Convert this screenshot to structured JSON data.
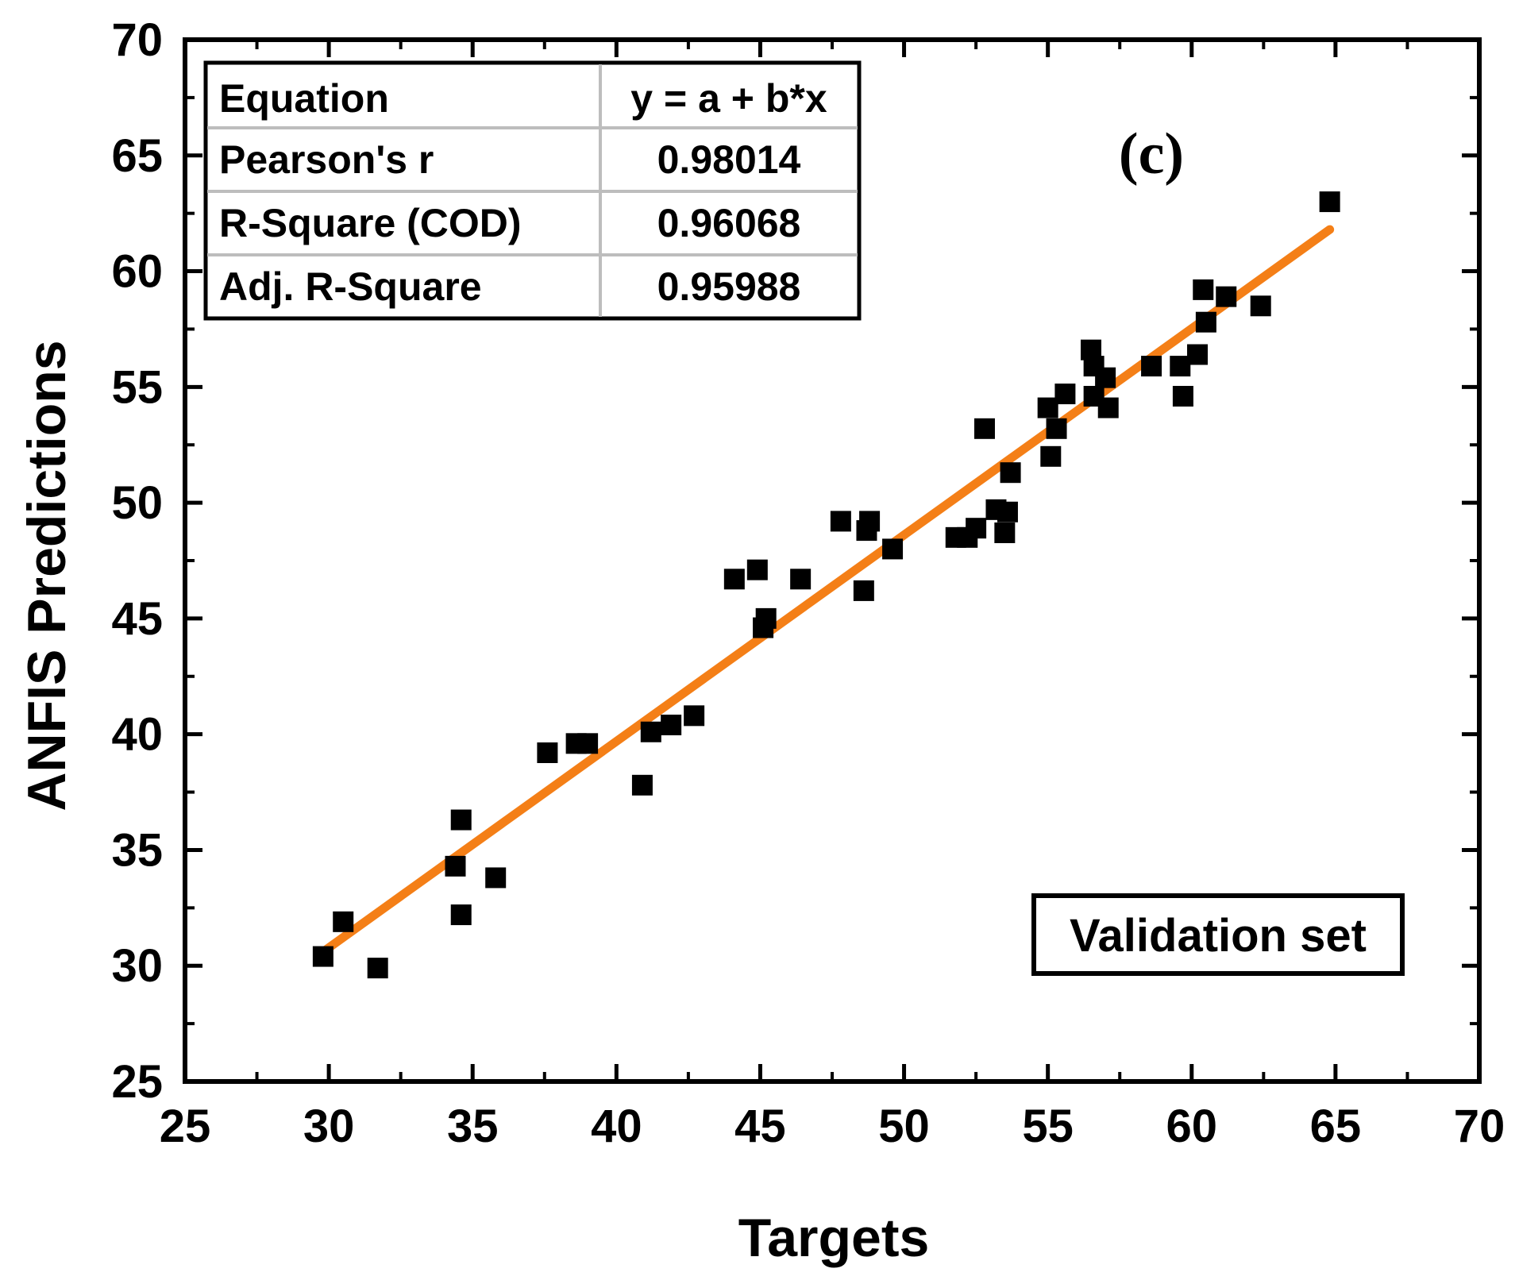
{
  "chart_data": {
    "type": "scatter",
    "title": "",
    "panel_label": "(c)",
    "xlabel": "Targets",
    "ylabel": "ANFIS Predictions",
    "xlim": [
      25,
      70
    ],
    "ylim": [
      25,
      70
    ],
    "xticks": [
      25,
      30,
      35,
      40,
      45,
      50,
      55,
      60,
      65,
      70
    ],
    "yticks": [
      25,
      30,
      35,
      40,
      45,
      50,
      55,
      60,
      65,
      70
    ],
    "legend_box_text": "Validation set",
    "marker": "square",
    "marker_color": "#000000",
    "fit_color": "#f47f17",
    "fit_line": {
      "x0": 29.8,
      "x1": 64.8,
      "y0": 30.6,
      "y1": 61.8
    },
    "stats_table": [
      {
        "label": "Equation",
        "value": "y = a + b*x"
      },
      {
        "label": "Pearson's r",
        "value": "0.98014"
      },
      {
        "label": "R-Square (COD)",
        "value": "0.96068"
      },
      {
        "label": "Adj. R-Square",
        "value": "0.95988"
      }
    ],
    "points": [
      {
        "x": 29.8,
        "y": 30.4
      },
      {
        "x": 30.5,
        "y": 31.9
      },
      {
        "x": 31.7,
        "y": 29.9
      },
      {
        "x": 34.4,
        "y": 34.3
      },
      {
        "x": 34.6,
        "y": 36.3
      },
      {
        "x": 34.6,
        "y": 32.2
      },
      {
        "x": 35.8,
        "y": 33.8
      },
      {
        "x": 37.6,
        "y": 39.2
      },
      {
        "x": 38.6,
        "y": 39.6
      },
      {
        "x": 39.0,
        "y": 39.6
      },
      {
        "x": 40.9,
        "y": 37.8
      },
      {
        "x": 41.2,
        "y": 40.1
      },
      {
        "x": 41.9,
        "y": 40.4
      },
      {
        "x": 42.7,
        "y": 40.8
      },
      {
        "x": 44.1,
        "y": 46.7
      },
      {
        "x": 44.9,
        "y": 47.1
      },
      {
        "x": 45.1,
        "y": 44.6
      },
      {
        "x": 45.2,
        "y": 45.0
      },
      {
        "x": 46.4,
        "y": 46.7
      },
      {
        "x": 47.8,
        "y": 49.2
      },
      {
        "x": 48.6,
        "y": 46.2
      },
      {
        "x": 48.7,
        "y": 48.8
      },
      {
        "x": 48.8,
        "y": 49.2
      },
      {
        "x": 49.6,
        "y": 48.0
      },
      {
        "x": 51.8,
        "y": 48.5
      },
      {
        "x": 52.2,
        "y": 48.5
      },
      {
        "x": 52.5,
        "y": 48.9
      },
      {
        "x": 52.8,
        "y": 53.2
      },
      {
        "x": 53.2,
        "y": 49.7
      },
      {
        "x": 53.5,
        "y": 48.7
      },
      {
        "x": 53.6,
        "y": 49.6
      },
      {
        "x": 53.7,
        "y": 51.3
      },
      {
        "x": 55.0,
        "y": 54.1
      },
      {
        "x": 55.1,
        "y": 52.0
      },
      {
        "x": 55.3,
        "y": 53.2
      },
      {
        "x": 55.6,
        "y": 54.7
      },
      {
        "x": 56.5,
        "y": 56.6
      },
      {
        "x": 56.6,
        "y": 55.9
      },
      {
        "x": 56.6,
        "y": 54.6
      },
      {
        "x": 57.0,
        "y": 55.4
      },
      {
        "x": 57.1,
        "y": 54.1
      },
      {
        "x": 58.6,
        "y": 55.9
      },
      {
        "x": 59.6,
        "y": 55.9
      },
      {
        "x": 59.7,
        "y": 54.6
      },
      {
        "x": 60.2,
        "y": 56.4
      },
      {
        "x": 60.4,
        "y": 59.2
      },
      {
        "x": 60.5,
        "y": 57.8
      },
      {
        "x": 61.2,
        "y": 58.9
      },
      {
        "x": 62.4,
        "y": 58.5
      },
      {
        "x": 64.8,
        "y": 63.0
      }
    ]
  }
}
